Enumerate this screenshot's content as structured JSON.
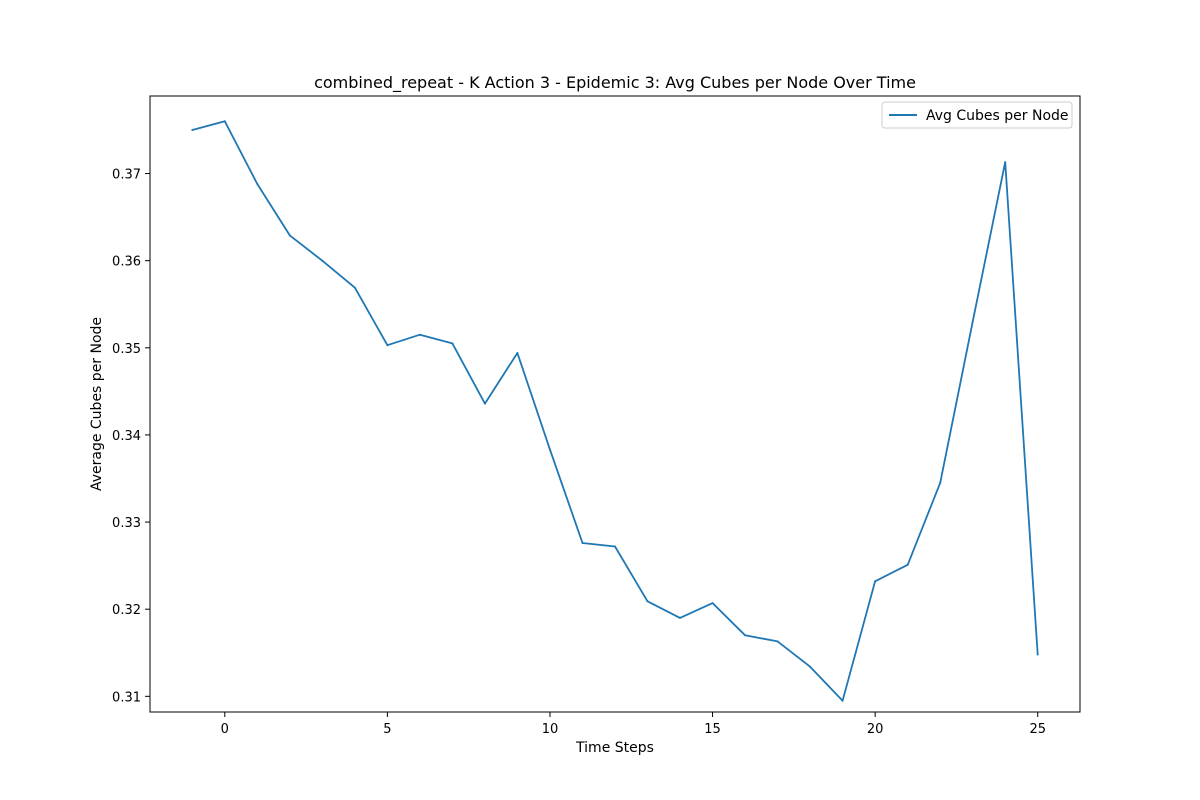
{
  "chart_data": {
    "type": "line",
    "title": "combined_repeat - K Action 3 - Epidemic 3: Avg Cubes per Node Over Time",
    "xlabel": "Time Steps",
    "ylabel": "Average Cubes per Node",
    "xlim": [
      -2.3,
      26.3
    ],
    "ylim": [
      0.3082,
      0.3789
    ],
    "xticks": [
      0,
      5,
      10,
      15,
      20,
      25
    ],
    "xtick_labels": [
      "0",
      "5",
      "10",
      "15",
      "20",
      "25"
    ],
    "yticks": [
      0.31,
      0.32,
      0.33,
      0.34,
      0.35,
      0.36,
      0.37
    ],
    "ytick_labels": [
      "0.31",
      "0.32",
      "0.33",
      "0.34",
      "0.35",
      "0.36",
      "0.37"
    ],
    "grid": false,
    "legend_position": "top-right",
    "series": [
      {
        "name": "Avg Cubes per Node",
        "color": "#1f77b4",
        "x": [
          -1,
          0,
          1,
          2,
          3,
          4,
          5,
          6,
          7,
          8,
          9,
          10,
          11,
          12,
          13,
          14,
          15,
          16,
          17,
          18,
          19,
          20,
          21,
          22,
          23,
          24,
          25
        ],
        "y": [
          0.375,
          0.376,
          0.3688,
          0.3629,
          0.36,
          0.3569,
          0.3503,
          0.3515,
          0.3505,
          0.3436,
          0.3494,
          0.3383,
          0.3276,
          0.3272,
          0.3209,
          0.319,
          0.3207,
          0.317,
          0.3163,
          0.3134,
          0.3095,
          0.3232,
          0.3251,
          0.3345,
          0.353,
          0.3713,
          0.3148
        ]
      }
    ]
  }
}
